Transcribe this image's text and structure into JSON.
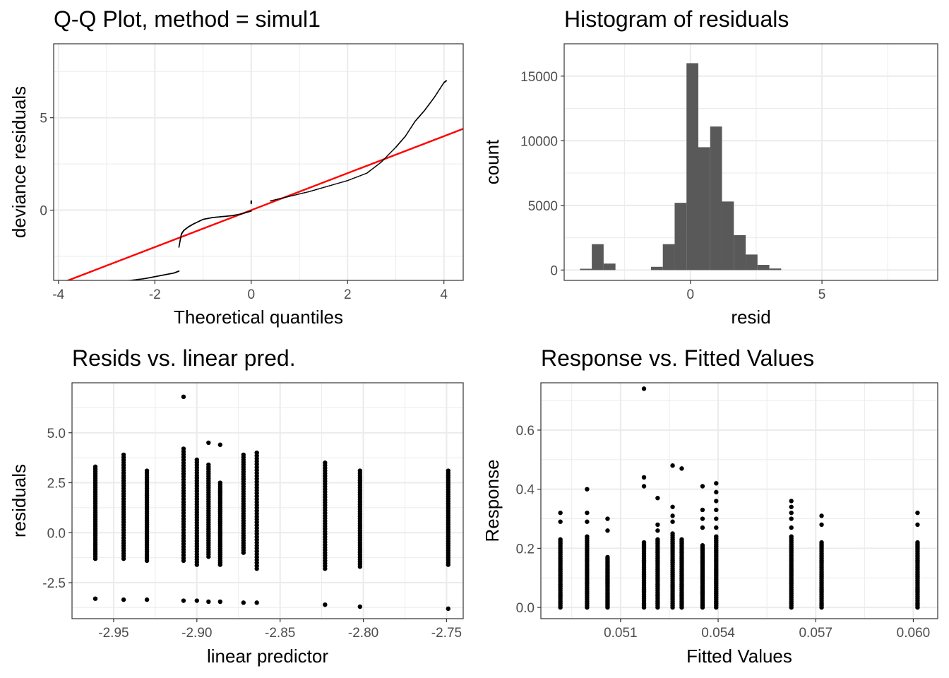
{
  "chart_data": [
    {
      "id": "qq",
      "type": "scatter",
      "title": "Q-Q Plot, method = simul1",
      "xlabel": "Theoretical quantiles",
      "ylabel": "deviance residuals",
      "xlim": [
        -4.1,
        4.4
      ],
      "ylim": [
        -3.8,
        9.0
      ],
      "xticks": [
        -4,
        -2,
        0,
        2,
        4
      ],
      "yticks": [
        0,
        5
      ],
      "xtick_labels": [
        "-4",
        "-2",
        "0",
        "2",
        "4"
      ],
      "ytick_labels": [
        "0",
        "5"
      ],
      "point_color": "#000000",
      "line_color": "#ff0000",
      "reference_line": {
        "intercept": 0.0,
        "slope": 1.0
      },
      "series": [
        {
          "x": [
            -2.7,
            -2.5,
            -2.2,
            -2.0,
            -1.8,
            -1.6,
            -1.5
          ],
          "y": [
            -3.85,
            -3.8,
            -3.7,
            -3.6,
            -3.5,
            -3.4,
            -3.3
          ]
        },
        {
          "x": [
            -1.5,
            -1.45,
            -1.4,
            -1.3,
            -1.2,
            -1.0,
            -0.8,
            -0.6,
            -0.4,
            -0.2,
            0.0
          ],
          "y": [
            -2.0,
            -1.3,
            -1.1,
            -0.9,
            -0.75,
            -0.5,
            -0.4,
            -0.35,
            -0.3,
            -0.2,
            -0.05
          ]
        },
        {
          "x": [
            0.0,
            0.0
          ],
          "y": [
            0.35,
            0.5
          ]
        },
        {
          "x": [
            0.4,
            0.8,
            1.2,
            1.6,
            2.0,
            2.4,
            2.7,
            3.0,
            3.2,
            3.4,
            3.6,
            3.8,
            4.0,
            4.05
          ],
          "y": [
            0.5,
            0.75,
            1.0,
            1.3,
            1.6,
            2.0,
            2.6,
            3.4,
            4.0,
            4.8,
            5.4,
            6.1,
            6.9,
            7.0
          ]
        }
      ]
    },
    {
      "id": "hist",
      "type": "bar",
      "title": "Histogram of residuals",
      "xlabel": "resid",
      "ylabel": "count",
      "xlim": [
        -4.8,
        9.4
      ],
      "ylim": [
        -800,
        17500
      ],
      "xticks": [
        0,
        5
      ],
      "yticks": [
        0,
        5000,
        10000,
        15000
      ],
      "xtick_labels": [
        "0",
        "5"
      ],
      "ytick_labels": [
        "0",
        "5000",
        "10000",
        "15000"
      ],
      "bar_color": "#595959",
      "bin_width": 0.45,
      "bins_left": [
        -4.2,
        -3.75,
        -3.3,
        -2.85,
        -2.4,
        -1.95,
        -1.5,
        -1.05,
        -0.6,
        -0.15,
        0.3,
        0.75,
        1.2,
        1.65,
        2.1,
        2.55,
        3.0
      ],
      "values": [
        100,
        2000,
        500,
        0,
        0,
        0,
        250,
        2000,
        5200,
        16000,
        9500,
        11100,
        5300,
        2700,
        1200,
        400,
        120
      ]
    },
    {
      "id": "resid_lp",
      "type": "scatter",
      "title": "Resids vs. linear pred.",
      "xlabel": "linear predictor",
      "ylabel": "residuals",
      "xlim": [
        -2.975,
        -2.74
      ],
      "ylim": [
        -4.3,
        7.5
      ],
      "xticks": [
        -2.95,
        -2.9,
        -2.85,
        -2.8,
        -2.75
      ],
      "yticks": [
        -2.5,
        0.0,
        2.5,
        5.0
      ],
      "xtick_labels": [
        "-2.95",
        "-2.90",
        "-2.85",
        "-2.80",
        "-2.75"
      ],
      "ytick_labels": [
        "-2.5",
        "0.0",
        "2.5",
        "5.0"
      ],
      "point_color": "#000000",
      "columns": [
        {
          "x": -2.961,
          "ymin": -1.3,
          "ymax": 3.3,
          "outlier": -3.3
        },
        {
          "x": -2.944,
          "ymin": -1.3,
          "ymax": 3.9,
          "outlier": -3.35
        },
        {
          "x": -2.93,
          "ymin": -1.4,
          "ymax": 3.1,
          "outlier": -3.35
        },
        {
          "x": -2.908,
          "ymin": -1.4,
          "ymax": 4.2,
          "outlier": -3.4,
          "top": 6.8
        },
        {
          "x": -2.9,
          "ymin": -1.6,
          "ymax": 3.65,
          "outlier": -3.4
        },
        {
          "x": -2.893,
          "ymin": -1.2,
          "ymax": 3.4,
          "outlier": -3.45,
          "top": 4.5
        },
        {
          "x": -2.886,
          "ymin": -1.6,
          "ymax": 2.5,
          "outlier": -3.45,
          "top": 4.4
        },
        {
          "x": -2.872,
          "ymin": -1.0,
          "ymax": 3.9,
          "outlier": -3.5
        },
        {
          "x": -2.864,
          "ymin": -1.8,
          "ymax": 4.0,
          "outlier": -3.5
        },
        {
          "x": -2.823,
          "ymin": -1.8,
          "ymax": 3.5,
          "outlier": -3.6
        },
        {
          "x": -2.802,
          "ymin": -1.7,
          "ymax": 3.1,
          "outlier": -3.7
        },
        {
          "x": -2.749,
          "ymin": -1.6,
          "ymax": 3.1,
          "outlier": -3.8
        }
      ]
    },
    {
      "id": "resp_fit",
      "type": "scatter",
      "title": "Response vs. Fitted Values",
      "xlabel": "Fitted Values",
      "ylabel": "Response",
      "xlim": [
        0.04855,
        0.06075
      ],
      "ylim": [
        -0.038,
        0.76
      ],
      "xticks": [
        0.051,
        0.054,
        0.057,
        0.06
      ],
      "yticks": [
        0.0,
        0.2,
        0.4,
        0.6
      ],
      "xtick_labels": [
        "0.051",
        "0.054",
        "0.057",
        "0.060"
      ],
      "ytick_labels": [
        "0.0",
        "0.2",
        "0.4",
        "0.6"
      ],
      "point_color": "#000000",
      "columns": [
        {
          "x": 0.04915,
          "ymax": 0.23,
          "extra": [
            0.29,
            0.32
          ]
        },
        {
          "x": 0.04997,
          "ymax": 0.24,
          "extra": [
            0.29,
            0.32,
            0.4
          ]
        },
        {
          "x": 0.0506,
          "ymax": 0.17,
          "extra": [
            0.26,
            0.3
          ]
        },
        {
          "x": 0.05172,
          "ymax": 0.22,
          "extra": [
            0.41,
            0.44,
            0.74
          ]
        },
        {
          "x": 0.05214,
          "ymax": 0.23,
          "extra": [
            0.26,
            0.28,
            0.37
          ]
        },
        {
          "x": 0.0526,
          "ymax": 0.25,
          "extra": [
            0.29,
            0.31,
            0.34,
            0.48
          ]
        },
        {
          "x": 0.05288,
          "ymax": 0.23,
          "extra": [
            0.47
          ]
        },
        {
          "x": 0.05352,
          "ymax": 0.21,
          "extra": [
            0.27,
            0.3,
            0.33,
            0.41
          ]
        },
        {
          "x": 0.05394,
          "ymax": 0.24,
          "extra": [
            0.27,
            0.3,
            0.33,
            0.36,
            0.39,
            0.42
          ]
        },
        {
          "x": 0.05625,
          "ymax": 0.24,
          "extra": [
            0.27,
            0.3,
            0.32,
            0.34,
            0.36
          ]
        },
        {
          "x": 0.05718,
          "ymax": 0.22,
          "extra": [
            0.28,
            0.31
          ]
        },
        {
          "x": 0.06013,
          "ymax": 0.22,
          "extra": [
            0.28,
            0.32
          ]
        }
      ]
    }
  ]
}
